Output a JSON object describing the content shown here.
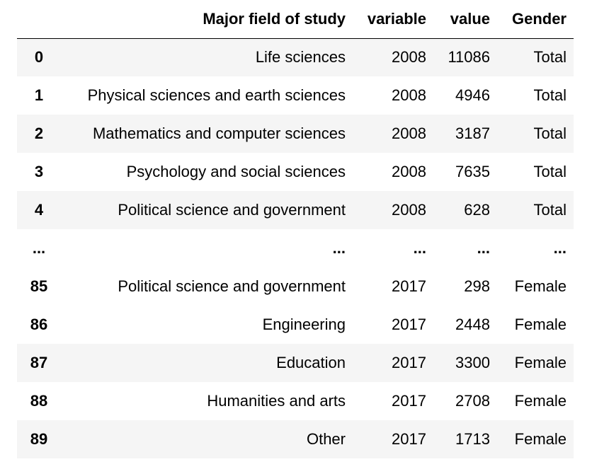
{
  "table": {
    "columns": [
      "",
      "Major field of study",
      "variable",
      "value",
      "Gender"
    ],
    "rows": [
      {
        "index": "0",
        "field": "Life sciences",
        "variable": "2008",
        "value": "11086",
        "gender": "Total"
      },
      {
        "index": "1",
        "field": "Physical sciences and earth sciences",
        "variable": "2008",
        "value": "4946",
        "gender": "Total"
      },
      {
        "index": "2",
        "field": "Mathematics and computer sciences",
        "variable": "2008",
        "value": "3187",
        "gender": "Total"
      },
      {
        "index": "3",
        "field": "Psychology and social sciences",
        "variable": "2008",
        "value": "7635",
        "gender": "Total"
      },
      {
        "index": "4",
        "field": "Political science and government",
        "variable": "2008",
        "value": "628",
        "gender": "Total"
      },
      {
        "index": "...",
        "field": "...",
        "variable": "...",
        "value": "...",
        "gender": "..."
      },
      {
        "index": "85",
        "field": "Political science and government",
        "variable": "2017",
        "value": "298",
        "gender": "Female"
      },
      {
        "index": "86",
        "field": "Engineering",
        "variable": "2017",
        "value": "2448",
        "gender": "Female"
      },
      {
        "index": "87",
        "field": "Education",
        "variable": "2017",
        "value": "3300",
        "gender": "Female"
      },
      {
        "index": "88",
        "field": "Humanities and arts",
        "variable": "2017",
        "value": "2708",
        "gender": "Female"
      },
      {
        "index": "89",
        "field": "Other",
        "variable": "2017",
        "value": "1713",
        "gender": "Female"
      }
    ]
  }
}
